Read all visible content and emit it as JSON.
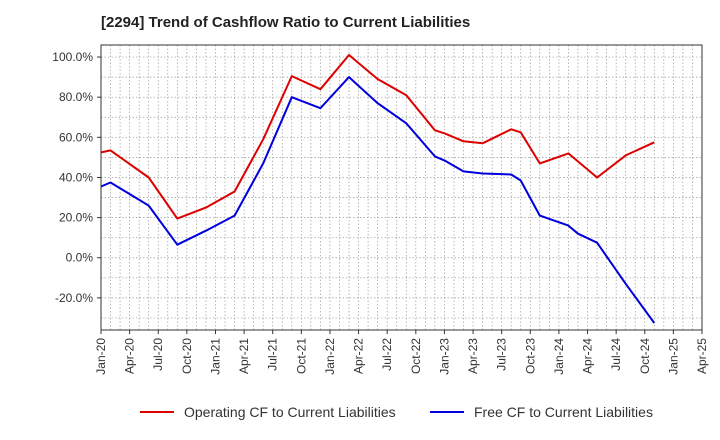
{
  "title": "[2294]  Trend of Cashflow Ratio to Current Liabilities",
  "colors": {
    "operating": "#dd0000",
    "free": "#0000dd",
    "grid": "#9a9a9a",
    "axis": "#333333"
  },
  "chart_data": {
    "type": "line",
    "title": "[2294]  Trend of Cashflow Ratio to Current Liabilities",
    "xlabel": "",
    "ylabel": "",
    "x_range": [
      "2020-01",
      "2025-04"
    ],
    "ylim": [
      -36,
      106
    ],
    "yticks": [
      -20,
      0,
      20,
      40,
      60,
      80,
      100
    ],
    "ytick_labels": [
      "-20.0%",
      "0.0%",
      "20.0%",
      "40.0%",
      "60.0%",
      "80.0%",
      "100.0%"
    ],
    "xtick_labels": [
      "Jan-20",
      "Apr-20",
      "Jul-20",
      "Oct-20",
      "Jan-21",
      "Apr-21",
      "Jul-21",
      "Oct-21",
      "Jan-22",
      "Apr-22",
      "Jul-22",
      "Oct-22",
      "Jan-23",
      "Apr-23",
      "Jul-23",
      "Oct-23",
      "Jan-24",
      "Apr-24",
      "Jul-24",
      "Oct-24",
      "Jan-25",
      "Apr-25"
    ],
    "grid": true,
    "legend_position": "bottom",
    "series": [
      {
        "name": "Operating CF to Current Liabilities",
        "color": "#dd0000",
        "points": [
          {
            "x": "2020-01",
            "y": 52.5
          },
          {
            "x": "2020-02",
            "y": 53.5
          },
          {
            "x": "2020-06",
            "y": 40
          },
          {
            "x": "2020-09",
            "y": 19.5
          },
          {
            "x": "2020-12",
            "y": 25
          },
          {
            "x": "2021-03",
            "y": 33
          },
          {
            "x": "2021-06",
            "y": 59
          },
          {
            "x": "2021-09",
            "y": 90.5
          },
          {
            "x": "2021-12",
            "y": 84
          },
          {
            "x": "2022-03",
            "y": 101
          },
          {
            "x": "2022-06",
            "y": 89
          },
          {
            "x": "2022-09",
            "y": 81
          },
          {
            "x": "2022-12",
            "y": 63.5
          },
          {
            "x": "2023-01",
            "y": 62
          },
          {
            "x": "2023-03",
            "y": 58
          },
          {
            "x": "2023-05",
            "y": 57
          },
          {
            "x": "2023-08",
            "y": 64
          },
          {
            "x": "2023-09",
            "y": 62.5
          },
          {
            "x": "2023-11",
            "y": 47
          },
          {
            "x": "2024-02",
            "y": 52
          },
          {
            "x": "2024-05",
            "y": 40
          },
          {
            "x": "2024-08",
            "y": 51
          },
          {
            "x": "2024-11",
            "y": 57.5
          }
        ]
      },
      {
        "name": "Free CF to Current Liabilities",
        "color": "#0000dd",
        "points": [
          {
            "x": "2020-01",
            "y": 35.5
          },
          {
            "x": "2020-02",
            "y": 37.5
          },
          {
            "x": "2020-06",
            "y": 26
          },
          {
            "x": "2020-09",
            "y": 6.5
          },
          {
            "x": "2020-12",
            "y": 13.5
          },
          {
            "x": "2021-03",
            "y": 21
          },
          {
            "x": "2021-06",
            "y": 47
          },
          {
            "x": "2021-09",
            "y": 80
          },
          {
            "x": "2021-12",
            "y": 74.5
          },
          {
            "x": "2022-03",
            "y": 90
          },
          {
            "x": "2022-06",
            "y": 77
          },
          {
            "x": "2022-09",
            "y": 67
          },
          {
            "x": "2022-12",
            "y": 50.5
          },
          {
            "x": "2023-01",
            "y": 48.5
          },
          {
            "x": "2023-03",
            "y": 43
          },
          {
            "x": "2023-05",
            "y": 42
          },
          {
            "x": "2023-08",
            "y": 41.5
          },
          {
            "x": "2023-09",
            "y": 38.5
          },
          {
            "x": "2023-11",
            "y": 21
          },
          {
            "x": "2024-02",
            "y": 16
          },
          {
            "x": "2024-03",
            "y": 12
          },
          {
            "x": "2024-05",
            "y": 7.5
          },
          {
            "x": "2024-08",
            "y": -13
          },
          {
            "x": "2024-11",
            "y": -32.5
          }
        ]
      }
    ]
  }
}
